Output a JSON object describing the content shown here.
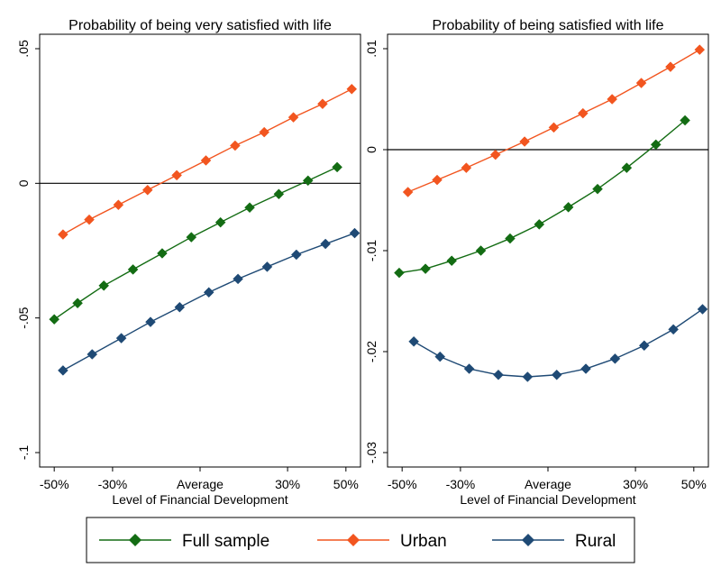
{
  "colors": {
    "full_sample": "#136c13",
    "urban": "#f2551f",
    "rural": "#1f4a75"
  },
  "legend": {
    "items": [
      {
        "key": "full_sample",
        "label": "Full sample"
      },
      {
        "key": "urban",
        "label": "Urban"
      },
      {
        "key": "rural",
        "label": "Rural"
      }
    ]
  },
  "chart_data": [
    {
      "type": "line",
      "title": "Probability of being very satisfied with life",
      "xlabel": "Level of Financial Development",
      "ylabel": "",
      "xlim": [
        -55,
        55
      ],
      "ylim": [
        -0.1,
        0.05
      ],
      "x_ticks": [
        -50,
        -30,
        0,
        30,
        50
      ],
      "x_tick_labels": [
        "-50%",
        "-30%",
        "Average",
        "30%",
        "50%"
      ],
      "y_ticks": [
        -0.1,
        -0.05,
        0,
        0.05
      ],
      "y_tick_labels": [
        "-.1",
        "-.05",
        "0",
        ".05"
      ],
      "reference_line_y": 0,
      "grid": false,
      "series": [
        {
          "key": "full_sample",
          "name": "Full sample",
          "x": [
            -50,
            -42,
            -33,
            -23,
            -13,
            -3,
            7,
            17,
            27,
            37,
            47
          ],
          "y": [
            -0.0505,
            -0.0445,
            -0.038,
            -0.032,
            -0.026,
            -0.02,
            -0.0145,
            -0.009,
            -0.004,
            0.001,
            0.006
          ]
        },
        {
          "key": "urban",
          "name": "Urban",
          "x": [
            -47,
            -38,
            -28,
            -18,
            -8,
            2,
            12,
            22,
            32,
            42,
            52
          ],
          "y": [
            -0.019,
            -0.0135,
            -0.008,
            -0.0025,
            0.003,
            0.0085,
            0.014,
            0.019,
            0.0245,
            0.0295,
            0.035
          ]
        },
        {
          "key": "rural",
          "name": "Rural",
          "x": [
            -47,
            -37,
            -27,
            -17,
            -7,
            3,
            13,
            23,
            33,
            43,
            53
          ],
          "y": [
            -0.0695,
            -0.0635,
            -0.0575,
            -0.0515,
            -0.046,
            -0.0405,
            -0.0355,
            -0.031,
            -0.0265,
            -0.0225,
            -0.0185
          ]
        }
      ]
    },
    {
      "type": "line",
      "title": "Probability of being satisfied with life",
      "xlabel": "Level of Financial Development",
      "ylabel": "",
      "xlim": [
        -55,
        55
      ],
      "ylim": [
        -0.03,
        0.01
      ],
      "x_ticks": [
        -50,
        -30,
        0,
        30,
        50
      ],
      "x_tick_labels": [
        "-50%",
        "-30%",
        "Average",
        "30%",
        "50%"
      ],
      "y_ticks": [
        -0.03,
        -0.02,
        -0.01,
        0,
        0.01
      ],
      "y_tick_labels": [
        "-.03",
        "-.02",
        "-.01",
        "0",
        ".01"
      ],
      "reference_line_y": 0,
      "grid": false,
      "series": [
        {
          "key": "full_sample",
          "name": "Full sample",
          "x": [
            -51,
            -42,
            -33,
            -23,
            -13,
            -3,
            7,
            17,
            27,
            37,
            47
          ],
          "y": [
            -0.0122,
            -0.0118,
            -0.011,
            -0.01,
            -0.0088,
            -0.0074,
            -0.0057,
            -0.0039,
            -0.0018,
            0.0005,
            0.0029
          ]
        },
        {
          "key": "urban",
          "name": "Urban",
          "x": [
            -48,
            -38,
            -28,
            -18,
            -8,
            2,
            12,
            22,
            32,
            42,
            52
          ],
          "y": [
            -0.0042,
            -0.003,
            -0.0018,
            -0.0005,
            0.0008,
            0.0022,
            0.0036,
            0.005,
            0.0066,
            0.0082,
            0.0099
          ]
        },
        {
          "key": "rural",
          "name": "Rural",
          "x": [
            -46,
            -37,
            -27,
            -17,
            -7,
            3,
            13,
            23,
            33,
            43,
            53
          ],
          "y": [
            -0.019,
            -0.0205,
            -0.0217,
            -0.0223,
            -0.0225,
            -0.0223,
            -0.0217,
            -0.0207,
            -0.0194,
            -0.0178,
            -0.0158
          ]
        }
      ]
    }
  ]
}
